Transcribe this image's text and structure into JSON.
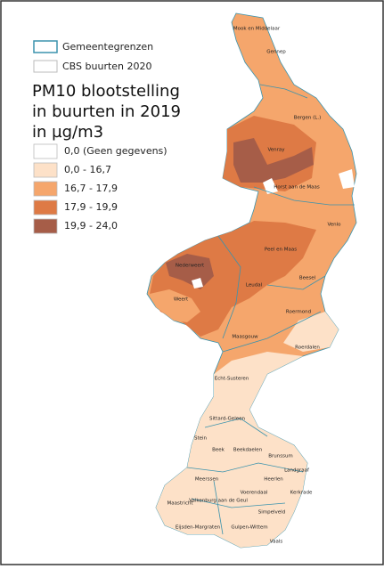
{
  "legend": {
    "boundaries": [
      "Gemeentegrenzen",
      "CBS buurten 2020"
    ],
    "title": [
      "PM10 blootstelling",
      "in buurten in 2019",
      "in µg/m3"
    ],
    "classes": [
      {
        "label": "0,0 (Geen gegevens)",
        "color": "#ffffff"
      },
      {
        "label": "0,0 - 16,7",
        "color": "#fde1c8"
      },
      {
        "label": "16,7 - 17,9",
        "color": "#f5a66c"
      },
      {
        "label": "17,9 - 19,9",
        "color": "#de7a45"
      },
      {
        "label": "19,9 - 24,0",
        "color": "#a65d48"
      }
    ]
  },
  "municipalities": [
    "Mook en Middelaar",
    "Gennep",
    "Bergen (L.)",
    "Venray",
    "Horst aan de Maas",
    "Venlo",
    "Peel en Maas",
    "Beesel",
    "Nederweert",
    "Leudal",
    "Weert",
    "Roermond",
    "Roerdalen",
    "Maasgouw",
    "Echt-Susteren",
    "Sittard-Geleen",
    "Stein",
    "Beek",
    "Beekdaelen",
    "Brunssum",
    "Landgraaf",
    "Heerlen",
    "Meerssen",
    "Voerendaal",
    "Kerkrade",
    "Valkenburg aan de Geul",
    "Simpelveld",
    "Maastricht",
    "Eijsden-Margraten",
    "Gulpen-Wittem",
    "Vaals"
  ]
}
